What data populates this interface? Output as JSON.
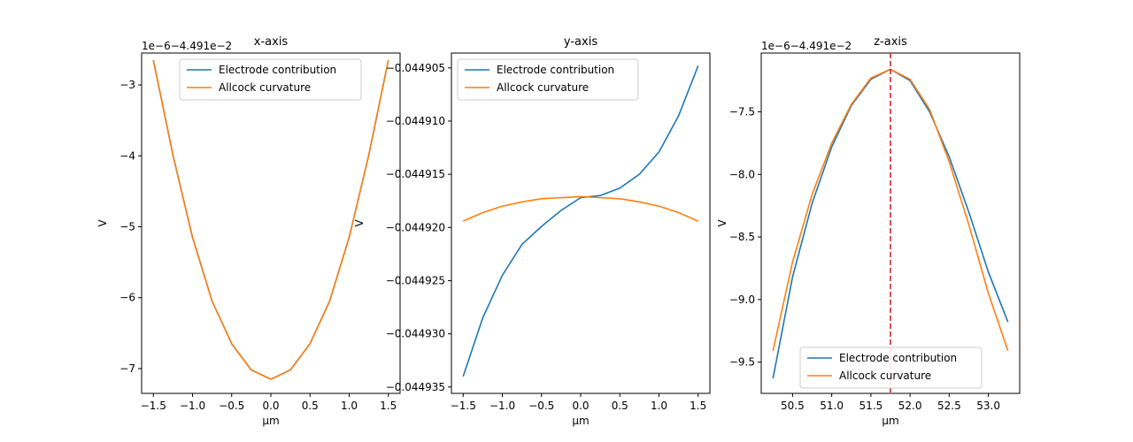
{
  "colors": {
    "electrode": "#1f77b4",
    "allcock": "#ff7f0e",
    "marker_line": "#d62728"
  },
  "chart_data": [
    {
      "type": "line",
      "title": "x-axis",
      "xlabel": "µm",
      "ylabel": "V",
      "offset_text": "1e−6−4.491e−2",
      "xlim": [
        -1.65,
        1.65
      ],
      "ylim": [
        -7.35,
        -2.55
      ],
      "xticks": [
        -1.5,
        -1.0,
        -0.5,
        0.0,
        0.5,
        1.0,
        1.5
      ],
      "xtick_labels": [
        "−1.5",
        "−1.0",
        "−0.5",
        "0.0",
        "0.5",
        "1.0",
        "1.5"
      ],
      "yticks": [
        -7,
        -6,
        -5,
        -4,
        -3
      ],
      "ytick_labels": [
        "−7",
        "−6",
        "−5",
        "−4",
        "−3"
      ],
      "legend": "top-right",
      "grid": false,
      "series": [
        {
          "name": "Electrode contribution",
          "color": "#1f77b4",
          "x": [
            -1.5,
            -1.25,
            -1.0,
            -0.75,
            -0.5,
            -0.25,
            0.0,
            0.25,
            0.5,
            0.75,
            1.0,
            1.25,
            1.5
          ],
          "y": [
            -2.65,
            -3.99,
            -5.15,
            -6.05,
            -6.65,
            -7.02,
            -7.15,
            -7.02,
            -6.65,
            -6.05,
            -5.15,
            -3.99,
            -2.65
          ]
        },
        {
          "name": "Allcock curvature",
          "color": "#ff7f0e",
          "x": [
            -1.5,
            -1.25,
            -1.0,
            -0.75,
            -0.5,
            -0.25,
            0.0,
            0.25,
            0.5,
            0.75,
            1.0,
            1.25,
            1.5
          ],
          "y": [
            -2.65,
            -3.99,
            -5.15,
            -6.05,
            -6.65,
            -7.02,
            -7.15,
            -7.02,
            -6.65,
            -6.05,
            -5.15,
            -3.99,
            -2.65
          ]
        }
      ]
    },
    {
      "type": "line",
      "title": "y-axis",
      "xlabel": "µm",
      "ylabel": "V",
      "offset_text": "",
      "xlim": [
        -1.65,
        1.65
      ],
      "ylim": [
        -0.0449356,
        -0.0449036
      ],
      "xticks": [
        -1.5,
        -1.0,
        -0.5,
        0.0,
        0.5,
        1.0,
        1.5
      ],
      "xtick_labels": [
        "−1.5",
        "−1.0",
        "−0.5",
        "0.0",
        "0.5",
        "1.0",
        "1.5"
      ],
      "yticks": [
        -0.044935,
        -0.04493,
        -0.044925,
        -0.04492,
        -0.044915,
        -0.04491,
        -0.044905
      ],
      "ytick_labels": [
        "−0.044935",
        "−0.044930",
        "−0.044925",
        "−0.044920",
        "−0.044915",
        "−0.044910",
        "−0.044905"
      ],
      "legend": "top-left",
      "grid": false,
      "series": [
        {
          "name": "Electrode contribution",
          "color": "#1f77b4",
          "x": [
            -1.5,
            -1.25,
            -1.0,
            -0.75,
            -0.5,
            -0.25,
            0.0,
            0.25,
            0.5,
            0.75,
            1.0,
            1.25,
            1.5
          ],
          "y": [
            -0.044934,
            -0.0449285,
            -0.0449245,
            -0.0449216,
            -0.0449199,
            -0.0449184,
            -0.0449172,
            -0.044917,
            -0.0449163,
            -0.044915,
            -0.0449129,
            -0.0449095,
            -0.0449048
          ]
        },
        {
          "name": "Allcock curvature",
          "color": "#ff7f0e",
          "x": [
            -1.5,
            -1.25,
            -1.0,
            -0.75,
            -0.5,
            -0.25,
            0.0,
            0.25,
            0.5,
            0.75,
            1.0,
            1.25,
            1.5
          ],
          "y": [
            -0.0449194,
            -0.0449186,
            -0.044918,
            -0.0449176,
            -0.0449173,
            -0.0449172,
            -0.0449171,
            -0.0449172,
            -0.0449173,
            -0.0449176,
            -0.044918,
            -0.0449186,
            -0.0449194
          ]
        }
      ]
    },
    {
      "type": "line",
      "title": "z-axis",
      "xlabel": "µm",
      "ylabel": "V",
      "offset_text": "1e−6−4.491e−2",
      "xlim": [
        50.1,
        53.4
      ],
      "ylim": [
        -9.75,
        -7.03
      ],
      "xticks": [
        50.5,
        51.0,
        51.5,
        52.0,
        52.5,
        53.0
      ],
      "xtick_labels": [
        "50.5",
        "51.0",
        "51.5",
        "52.0",
        "52.5",
        "53.0"
      ],
      "yticks": [
        -9.5,
        -9.0,
        -8.5,
        -8.0,
        -7.5
      ],
      "ytick_labels": [
        "−9.5",
        "−9.0",
        "−8.5",
        "−8.0",
        "−7.5"
      ],
      "vline_x": 51.75,
      "legend": "bottom-center",
      "grid": false,
      "series": [
        {
          "name": "Electrode contribution",
          "color": "#1f77b4",
          "x": [
            50.25,
            50.5,
            50.75,
            51.0,
            51.25,
            51.5,
            51.75,
            52.0,
            52.25,
            52.5,
            52.75,
            53.0,
            53.25
          ],
          "y": [
            -9.63,
            -8.82,
            -8.23,
            -7.78,
            -7.45,
            -7.24,
            -7.16,
            -7.25,
            -7.5,
            -7.86,
            -8.3,
            -8.78,
            -9.18
          ]
        },
        {
          "name": "Allcock curvature",
          "color": "#ff7f0e",
          "x": [
            50.25,
            50.5,
            50.75,
            51.0,
            51.25,
            51.5,
            51.75,
            52.0,
            52.25,
            52.5,
            52.75,
            53.0,
            53.25
          ],
          "y": [
            -9.41,
            -8.7,
            -8.16,
            -7.75,
            -7.44,
            -7.23,
            -7.16,
            -7.24,
            -7.48,
            -7.9,
            -8.4,
            -8.95,
            -9.41
          ]
        }
      ]
    }
  ]
}
